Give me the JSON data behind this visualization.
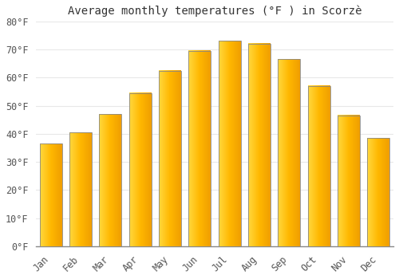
{
  "title": "Average monthly temperatures (°F ) in Scorzè",
  "months": [
    "Jan",
    "Feb",
    "Mar",
    "Apr",
    "May",
    "Jun",
    "Jul",
    "Aug",
    "Sep",
    "Oct",
    "Nov",
    "Dec"
  ],
  "values": [
    36.5,
    40.5,
    47.0,
    54.5,
    62.5,
    69.5,
    73.0,
    72.0,
    66.5,
    57.0,
    46.5,
    38.5
  ],
  "bar_color_left": "#FFD040",
  "bar_color_center": "#FFBB00",
  "bar_color_right": "#F0A000",
  "bar_border_color": "#888888",
  "ylim": [
    0,
    80
  ],
  "ytick_step": 10,
  "background_color": "#ffffff",
  "grid_color": "#e8e8e8",
  "title_fontsize": 10,
  "tick_fontsize": 8.5,
  "bar_width": 0.75
}
